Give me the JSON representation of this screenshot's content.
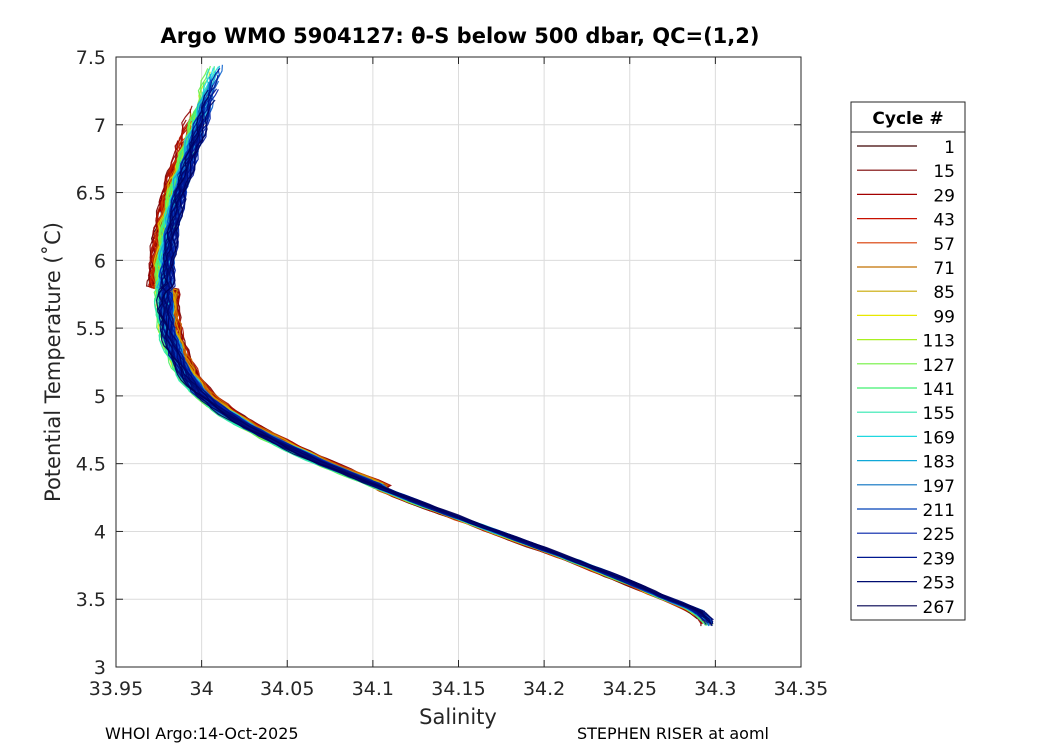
{
  "header": {
    "title": "Argo WMO 5904127: θ-S below 500 dbar,  QC=(1,2)"
  },
  "footer": {
    "left": "WHOI Argo:14-Oct-2025",
    "right": "STEPHEN RISER at aoml"
  },
  "chart_data": {
    "type": "line",
    "title": "Argo WMO 5904127: θ-S below 500 dbar,  QC=(1,2)",
    "xlabel": "Salinity",
    "ylabel": "Potential Temperature (˚C)",
    "xlim": [
      33.95,
      34.35
    ],
    "ylim": [
      3,
      7.5
    ],
    "xticks": [
      33.95,
      34,
      34.05,
      34.1,
      34.15,
      34.2,
      34.25,
      34.3,
      34.35
    ],
    "xtick_labels": [
      "33.95",
      "34",
      "34.05",
      "34.1",
      "34.15",
      "34.2",
      "34.25",
      "34.3",
      "34.35"
    ],
    "yticks": [
      3,
      3.5,
      4,
      4.5,
      5,
      5.5,
      6,
      6.5,
      7,
      7.5
    ],
    "ytick_labels": [
      "3",
      "3.5",
      "4",
      "4.5",
      "5",
      "5.5",
      "6",
      "6.5",
      "7",
      "7.5"
    ],
    "grid": true,
    "legend": {
      "title": "Cycle #",
      "placement": "outside-right",
      "entries": [
        "1",
        "15",
        "29",
        "43",
        "57",
        "71",
        "85",
        "99",
        "113",
        "127",
        "141",
        "155",
        "169",
        "183",
        "197",
        "211",
        "225",
        "239",
        "253",
        "267"
      ],
      "colors": [
        "#3d0000",
        "#7a0000",
        "#a30000",
        "#c81000",
        "#d83a00",
        "#c27000",
        "#c8a800",
        "#e8e800",
        "#a8f020",
        "#70f040",
        "#40f070",
        "#30e8b0",
        "#20d8e0",
        "#10a8d8",
        "#0870c0",
        "#0040b8",
        "#0020a8",
        "#001890",
        "#000c70",
        "#000050"
      ]
    },
    "series_shape": {
      "description_free": true,
      "x": [
        34.008,
        34.003,
        33.998,
        33.993,
        33.988,
        33.984,
        33.981,
        33.979,
        33.978,
        33.978,
        33.98,
        33.984,
        33.99,
        33.998,
        34.01,
        34.025,
        34.045,
        34.07,
        34.1,
        34.13,
        34.16,
        34.19,
        34.22,
        34.25,
        34.27,
        34.29,
        34.298
      ],
      "y": [
        7.45,
        7.2,
        7.0,
        6.8,
        6.6,
        6.4,
        6.2,
        6.0,
        5.8,
        5.6,
        5.45,
        5.3,
        5.15,
        5.02,
        4.9,
        4.78,
        4.65,
        4.5,
        4.35,
        4.2,
        4.06,
        3.92,
        3.78,
        3.63,
        3.52,
        3.42,
        3.33
      ]
    }
  }
}
